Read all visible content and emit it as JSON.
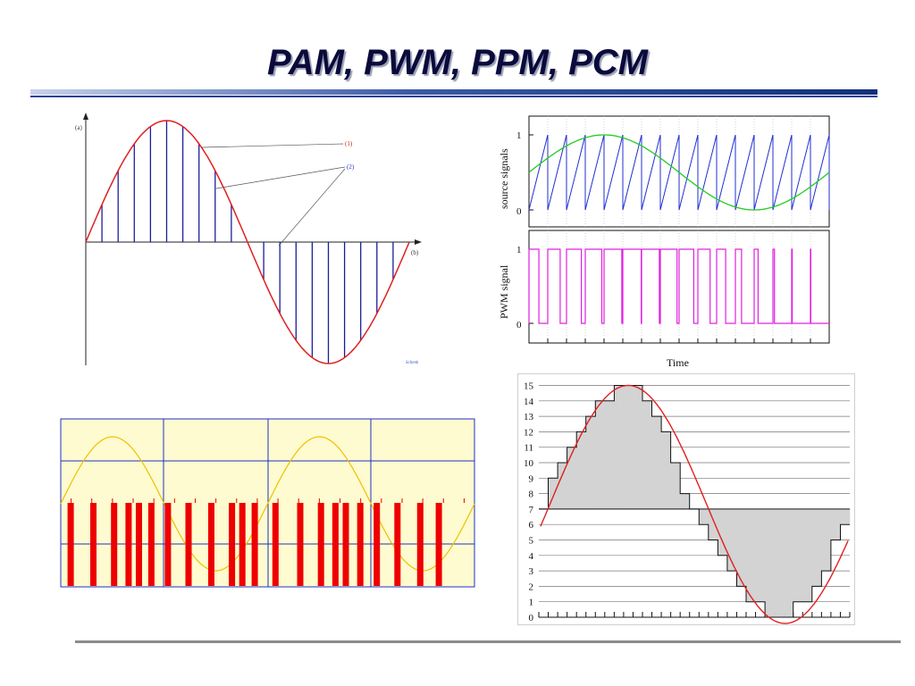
{
  "slide": {
    "title": "PAM, PWM, PPM, PCM"
  },
  "colors": {
    "title": "#0a0a3c",
    "accent_rule": "#1f3f96",
    "sine": "#e02020",
    "pam_bars": "#1c1c9a",
    "sawtooth": "#1f2fd0",
    "pwm_carrier_green": "#22cc22",
    "pwm": "#e020e0",
    "ppm_bg": "#fdfbcf",
    "ppm_grid": "#1f2fc8",
    "ppm_pulse": "#ee0000",
    "ppm_wave": "#f0c000",
    "pcm_fill": "#d3d3d3"
  },
  "chart_data": [
    {
      "type": "line",
      "name": "PAM",
      "panel_label_top": "(a)",
      "panel_label_axis": "(b)",
      "callouts": [
        "(1)",
        "(2)"
      ],
      "watermark": "Schenk",
      "signal": "sine, one full period",
      "samples_per_period": 20,
      "sample_values": [
        0,
        0.31,
        0.59,
        0.81,
        0.95,
        1.0,
        0.95,
        0.81,
        0.59,
        0.31,
        0,
        -0.31,
        -0.59,
        -0.81,
        -0.95,
        -1.0,
        -0.95,
        -0.81,
        -0.59,
        -0.31
      ]
    },
    {
      "type": "line",
      "name": "PWM",
      "ylabel_top": "source signals",
      "ylabel_bottom": "PWM signal",
      "xlabel": "Time",
      "yticks_top": [
        "0",
        "1"
      ],
      "yticks_bottom": [
        "0",
        "1"
      ],
      "ylim": [
        0,
        1
      ],
      "sawtooth_periods": 16,
      "carrier": "sine, 0.5 + 0.5·sin",
      "duty_cycles": [
        0.53,
        0.66,
        0.79,
        0.88,
        0.95,
        0.98,
        0.95,
        0.89,
        0.78,
        0.65,
        0.48,
        0.33,
        0.21,
        0.08,
        0.03,
        0.02
      ]
    },
    {
      "type": "line",
      "name": "PPM",
      "pulse_positions": [
        0.05,
        0.16,
        0.26,
        0.33,
        0.38,
        0.44,
        0.52,
        0.62,
        0.73,
        0.83,
        0.88,
        0.94,
        1.04,
        1.16,
        1.26,
        1.33,
        1.38,
        1.45,
        1.53,
        1.63,
        1.74,
        1.83
      ],
      "periods_shown": 2
    },
    {
      "type": "line",
      "name": "PCM",
      "yticks": [
        "0",
        "1",
        "2",
        "3",
        "4",
        "5",
        "6",
        "7",
        "8",
        "9",
        "10",
        "11",
        "12",
        "13",
        "14",
        "15"
      ],
      "ylim": [
        0,
        15
      ],
      "quantized_levels": [
        7,
        9,
        10,
        11,
        12,
        13,
        14,
        14,
        15,
        15,
        15,
        14,
        13,
        12,
        10,
        8,
        7,
        6,
        5,
        4,
        3,
        2,
        1,
        1,
        0,
        0,
        0,
        1,
        1,
        2,
        3,
        5,
        6
      ],
      "sample_count": 33
    }
  ]
}
